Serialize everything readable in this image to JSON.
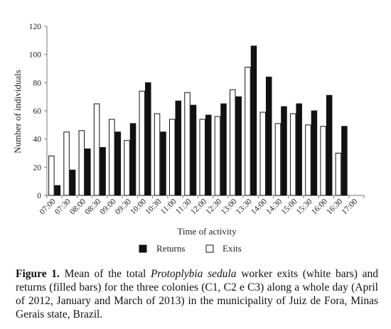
{
  "chart_data": {
    "type": "bar",
    "title": "",
    "xlabel": "Time of activity",
    "ylabel": "Number of individuals",
    "ylim": [
      0,
      120
    ],
    "yticks": [
      0,
      20,
      40,
      60,
      80,
      100,
      120
    ],
    "grid": false,
    "legend_position": "bottom",
    "categories": [
      "07:00",
      "07:30",
      "08:00",
      "08:30",
      "09:00",
      "09:30",
      "10:00",
      "10:30",
      "11:00",
      "11:30",
      "12:00",
      "12:30",
      "13:00",
      "13:30",
      "14:00",
      "14:30",
      "15:00",
      "15:30",
      "16:00",
      "16:30",
      "17:00"
    ],
    "series": [
      {
        "name": "Exits",
        "color": "#ffffff",
        "stroke": "#111111",
        "values": [
          28,
          45,
          46,
          65,
          54,
          39,
          74,
          58,
          54,
          73,
          54,
          56,
          75,
          91,
          59,
          51,
          58,
          50,
          49,
          30,
          0
        ]
      },
      {
        "name": "Returns",
        "color": "#111111",
        "stroke": "#111111",
        "values": [
          7,
          18,
          33,
          34,
          45,
          51,
          80,
          45,
          67,
          64,
          57,
          65,
          70,
          106,
          84,
          63,
          65,
          60,
          71,
          49,
          0
        ]
      }
    ]
  },
  "caption": {
    "label": "Figure 1.",
    "text_before": " Mean of the total ",
    "species": "Protoplybia sedula",
    "text_after": " worker exits (white bars) and returns (filled bars) for the three colonies (C1, C2 e C3) along a whole day (April of 2012, January and March of 2013) in the municipality of Juiz de Fora, Minas Gerais state, Brazil."
  }
}
